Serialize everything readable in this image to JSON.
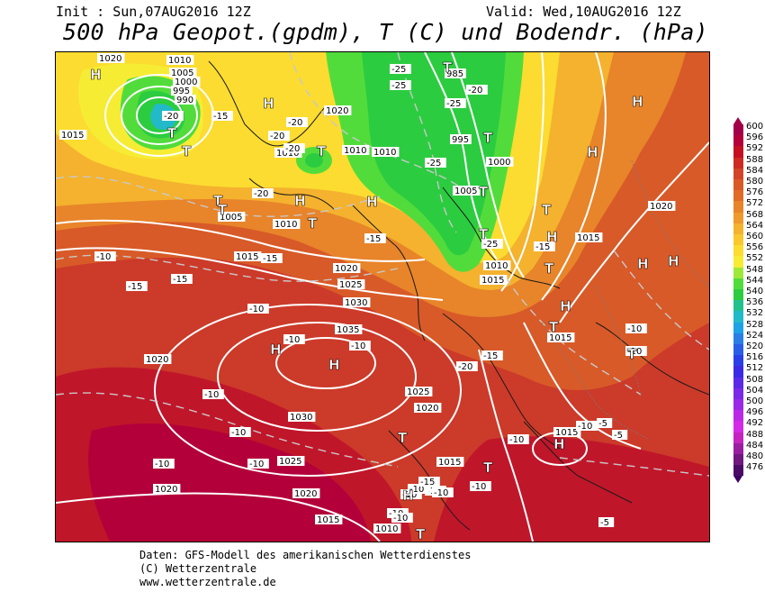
{
  "header": {
    "init": "Init : Sun,07AUG2016 12Z",
    "valid": "Valid: Wed,10AUG2016 12Z",
    "title": "500 hPa Geopot.(gpdm), T (C) und Bodendr. (hPa)"
  },
  "legend": {
    "labels": [
      "600",
      "596",
      "592",
      "588",
      "584",
      "580",
      "576",
      "572",
      "568",
      "564",
      "560",
      "556",
      "552",
      "548",
      "544",
      "540",
      "536",
      "532",
      "528",
      "524",
      "520",
      "516",
      "512",
      "508",
      "504",
      "500",
      "496",
      "492",
      "488",
      "484",
      "480",
      "476"
    ],
    "colors": [
      "#a3004a",
      "#b3003a",
      "#c40e22",
      "#cc2a22",
      "#d24428",
      "#d85a28",
      "#e06c28",
      "#e8842a",
      "#ee9a2c",
      "#f4b22e",
      "#f8c82e",
      "#fcdc30",
      "#f6ec34",
      "#9ee83a",
      "#52dc3c",
      "#2ccc40",
      "#22c08c",
      "#22bac8",
      "#1ea2e6",
      "#2a7ee6",
      "#2a5ee6",
      "#2a40e6",
      "#3a2ae6",
      "#5a2ae6",
      "#7a2ae6",
      "#9a2ae6",
      "#ba2ae6",
      "#d22ae6",
      "#c424c0",
      "#9a1ea0",
      "#701880",
      "#4a0a66"
    ]
  },
  "map": {
    "pressure_labels": [
      "1020",
      "1010",
      "1005",
      "1000",
      "995",
      "990",
      "1015",
      "1020",
      "1010",
      "1005",
      "1010",
      "1015",
      "1020",
      "1025",
      "1030",
      "1035",
      "1025",
      "1020",
      "1030",
      "1025",
      "1020",
      "1020",
      "1015",
      "1015",
      "1010",
      "1015",
      "1020",
      "1015",
      "1010",
      "1000",
      "1005",
      "995",
      "985",
      "1010",
      "1015",
      "1010",
      "1015",
      "1020"
    ],
    "temp_labels": [
      "-20",
      "-15",
      "-20",
      "-20",
      "-20",
      "-25",
      "-25",
      "-20",
      "-25",
      "-25",
      "-20",
      "-15",
      "-15",
      "-15",
      "-10",
      "-15",
      "-10",
      "-10",
      "-10",
      "-10",
      "-10",
      "-10",
      "-10",
      "-15",
      "-15",
      "-20",
      "-25",
      "-10",
      "-10",
      "-10",
      "-10",
      "-10",
      "-10",
      "-5",
      "-5",
      "-5",
      "-10",
      "-10",
      "-10",
      "-15",
      "-10",
      "-10"
    ],
    "highs": [
      "H",
      "H",
      "H",
      "H",
      "H",
      "H",
      "H",
      "H",
      "H",
      "H",
      "H",
      "H",
      "H",
      "H"
    ],
    "lows": [
      "T",
      "T",
      "T",
      "T",
      "T",
      "T",
      "T",
      "T",
      "T",
      "T",
      "T",
      "T",
      "T",
      "T",
      "T",
      "T",
      "T"
    ]
  },
  "footer": {
    "line1": "Daten: GFS-Modell des amerikanischen Wetterdienstes",
    "line2": "(C) Wetterzentrale",
    "line3": "www.wetterzentrale.de"
  }
}
